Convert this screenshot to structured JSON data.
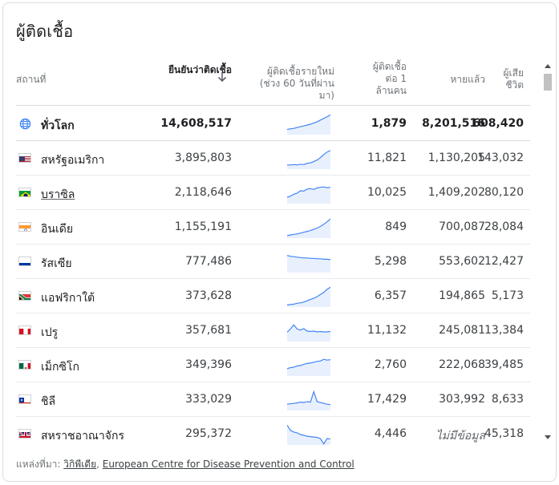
{
  "title": "ผู้ติดเชื้อ",
  "headers": {
    "region": "สถานที่",
    "confirmed": "ยืนยันว่าติดเชื้อ",
    "new_cases": "ผู้ติดเชื้อรายใหม่ (ช่วง 60 วันที่ผ่านมา)",
    "per_million": "ผู้ติดเชื้อต่อ 1 ล้านคน",
    "recovered": "หายแล้ว",
    "deaths": "ผู้เสียชีวิต"
  },
  "rows": [
    {
      "name": "ทั่วโลก",
      "icon": "globe-icon",
      "confirmed": "14,608,517",
      "per_million": "1,879",
      "recovered": "8,201,516",
      "deaths": "608,420",
      "trend": [
        0.25,
        0.28,
        0.3,
        0.35,
        0.38,
        0.42,
        0.46,
        0.5,
        0.56,
        0.62,
        0.7,
        0.78,
        0.86,
        0.95
      ]
    },
    {
      "name": "สหรัฐอเมริกา",
      "icon": "flag-us",
      "confirmed": "3,895,803",
      "per_million": "11,821",
      "recovered": "1,130,205",
      "deaths": "143,032",
      "trend": [
        0.2,
        0.2,
        0.22,
        0.2,
        0.24,
        0.22,
        0.28,
        0.3,
        0.36,
        0.44,
        0.55,
        0.7,
        0.82,
        0.9
      ]
    },
    {
      "name": "บราซิล",
      "icon": "flag-br",
      "confirmed": "2,118,646",
      "per_million": "10,025",
      "recovered": "1,409,202",
      "deaths": "80,120",
      "trend": [
        0.3,
        0.36,
        0.45,
        0.5,
        0.62,
        0.6,
        0.7,
        0.72,
        0.68,
        0.75,
        0.78,
        0.8,
        0.76,
        0.78
      ]
    },
    {
      "name": "อินเดีย",
      "icon": "flag-in",
      "confirmed": "1,155,191",
      "per_million": "849",
      "recovered": "700,087",
      "deaths": "28,084",
      "trend": [
        0.12,
        0.15,
        0.18,
        0.2,
        0.24,
        0.28,
        0.32,
        0.36,
        0.42,
        0.48,
        0.56,
        0.66,
        0.78,
        0.92
      ]
    },
    {
      "name": "รัสเซีย",
      "icon": "flag-ru",
      "confirmed": "777,486",
      "per_million": "5,298",
      "recovered": "553,602",
      "deaths": "12,427",
      "trend": [
        0.82,
        0.78,
        0.76,
        0.74,
        0.72,
        0.7,
        0.7,
        0.68,
        0.68,
        0.66,
        0.66,
        0.64,
        0.64,
        0.62
      ]
    },
    {
      "name": "แอฟริกาใต้",
      "icon": "flag-za",
      "confirmed": "373,628",
      "per_million": "6,357",
      "recovered": "194,865",
      "deaths": "5,173",
      "trend": [
        0.1,
        0.12,
        0.14,
        0.18,
        0.2,
        0.24,
        0.3,
        0.36,
        0.42,
        0.5,
        0.6,
        0.7,
        0.85,
        0.95
      ]
    },
    {
      "name": "เปรู",
      "icon": "flag-pe",
      "confirmed": "357,681",
      "per_million": "11,132",
      "recovered": "245,081",
      "deaths": "13,384",
      "trend": [
        0.45,
        0.6,
        0.8,
        0.6,
        0.55,
        0.62,
        0.5,
        0.48,
        0.5,
        0.46,
        0.48,
        0.46,
        0.46,
        0.48
      ]
    },
    {
      "name": "เม็กซิโก",
      "icon": "flag-mx",
      "confirmed": "349,396",
      "per_million": "2,760",
      "recovered": "222,068",
      "deaths": "39,485",
      "trend": [
        0.35,
        0.4,
        0.42,
        0.48,
        0.5,
        0.56,
        0.6,
        0.62,
        0.66,
        0.7,
        0.72,
        0.8,
        0.76,
        0.78
      ]
    },
    {
      "name": "ชิลี",
      "icon": "flag-cl",
      "confirmed": "333,029",
      "per_million": "17,429",
      "recovered": "303,992",
      "deaths": "8,633",
      "trend": [
        0.3,
        0.32,
        0.34,
        0.36,
        0.4,
        0.38,
        0.42,
        0.4,
        0.9,
        0.42,
        0.38,
        0.34,
        0.3,
        0.28
      ]
    },
    {
      "name": "สหราชอาณาจักร",
      "icon": "flag-gb",
      "confirmed": "295,372",
      "per_million": "4,446",
      "recovered": "ไม่มีข้อมูล",
      "deaths": "45,318",
      "trend": [
        0.95,
        0.7,
        0.62,
        0.58,
        0.5,
        0.46,
        0.42,
        0.4,
        0.38,
        0.36,
        0.3,
        0.05,
        0.3,
        0.28
      ]
    }
  ],
  "footer": {
    "prefix": "แหล่งที่มา: ",
    "source1": "วิกิพีเดีย",
    "separator": ", ",
    "source2": "European Centre for Disease Prevention and Control"
  },
  "colors": {
    "spark_line": "#4285f4",
    "spark_fill": "#e8f0fe"
  }
}
